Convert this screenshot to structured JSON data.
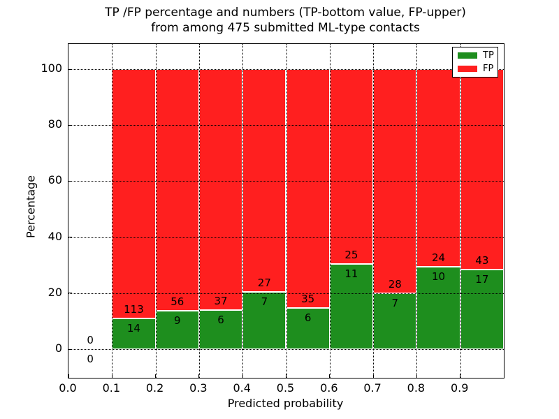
{
  "figure": {
    "title_line1": "TP /FP percentage and numbers (TP-bottom value, FP-upper)",
    "title_line2": "from among 475 submitted ML-type contacts"
  },
  "chart_data": {
    "type": "bar",
    "stacked": true,
    "title": "TP /FP percentage and numbers (TP-bottom value, FP-upper)\nfrom among 475 submitted ML-type contacts",
    "xlabel": "Predicted probability",
    "ylabel": "Percentage",
    "total_contacts": 475,
    "xlim": [
      0.0,
      1.0
    ],
    "ylim": [
      -10.2,
      109.0
    ],
    "grid": true,
    "x_ticks": [
      {
        "value": 0.0,
        "label": "0.0"
      },
      {
        "value": 0.1,
        "label": "0.1"
      },
      {
        "value": 0.2,
        "label": "0.2"
      },
      {
        "value": 0.3,
        "label": "0.3"
      },
      {
        "value": 0.4,
        "label": "0.4"
      },
      {
        "value": 0.5,
        "label": "0.5"
      },
      {
        "value": 0.6,
        "label": "0.6"
      },
      {
        "value": 0.7,
        "label": "0.7"
      },
      {
        "value": 0.8,
        "label": "0.8"
      },
      {
        "value": 0.9,
        "label": "0.9"
      }
    ],
    "y_ticks": [
      {
        "value": 0,
        "label": "0"
      },
      {
        "value": 20,
        "label": "20"
      },
      {
        "value": 40,
        "label": "40"
      },
      {
        "value": 60,
        "label": "60"
      },
      {
        "value": 80,
        "label": "80"
      },
      {
        "value": 100,
        "label": "100"
      }
    ],
    "colors": {
      "tp": "#1e8e1e",
      "fp": "#ff1f1f",
      "bar_edge": "#ffffff"
    },
    "legend": {
      "position": "upper right",
      "entries": [
        {
          "label": "TP",
          "color": "#1e8e1e"
        },
        {
          "label": "FP",
          "color": "#ff1f1f"
        }
      ]
    },
    "bins": [
      {
        "range": [
          0.0,
          0.1
        ],
        "tp": 0,
        "fp": 0,
        "tp_pct": 0.0,
        "stack_total_pct": 0
      },
      {
        "range": [
          0.1,
          0.2
        ],
        "tp": 14,
        "fp": 113,
        "tp_pct": 11.02,
        "stack_total_pct": 100
      },
      {
        "range": [
          0.2,
          0.3
        ],
        "tp": 9,
        "fp": 56,
        "tp_pct": 13.85,
        "stack_total_pct": 100
      },
      {
        "range": [
          0.3,
          0.4
        ],
        "tp": 6,
        "fp": 37,
        "tp_pct": 13.95,
        "stack_total_pct": 100
      },
      {
        "range": [
          0.4,
          0.5
        ],
        "tp": 7,
        "fp": 27,
        "tp_pct": 20.59,
        "stack_total_pct": 100
      },
      {
        "range": [
          0.5,
          0.6
        ],
        "tp": 6,
        "fp": 35,
        "tp_pct": 14.63,
        "stack_total_pct": 100
      },
      {
        "range": [
          0.6,
          0.7
        ],
        "tp": 11,
        "fp": 25,
        "tp_pct": 30.56,
        "stack_total_pct": 100
      },
      {
        "range": [
          0.7,
          0.8
        ],
        "tp": 7,
        "fp": 28,
        "tp_pct": 20.0,
        "stack_total_pct": 100
      },
      {
        "range": [
          0.8,
          0.9
        ],
        "tp": 10,
        "fp": 24,
        "tp_pct": 29.41,
        "stack_total_pct": 100
      },
      {
        "range": [
          0.9,
          1.0
        ],
        "tp": 17,
        "fp": 43,
        "tp_pct": 28.33,
        "stack_total_pct": 100
      }
    ]
  }
}
